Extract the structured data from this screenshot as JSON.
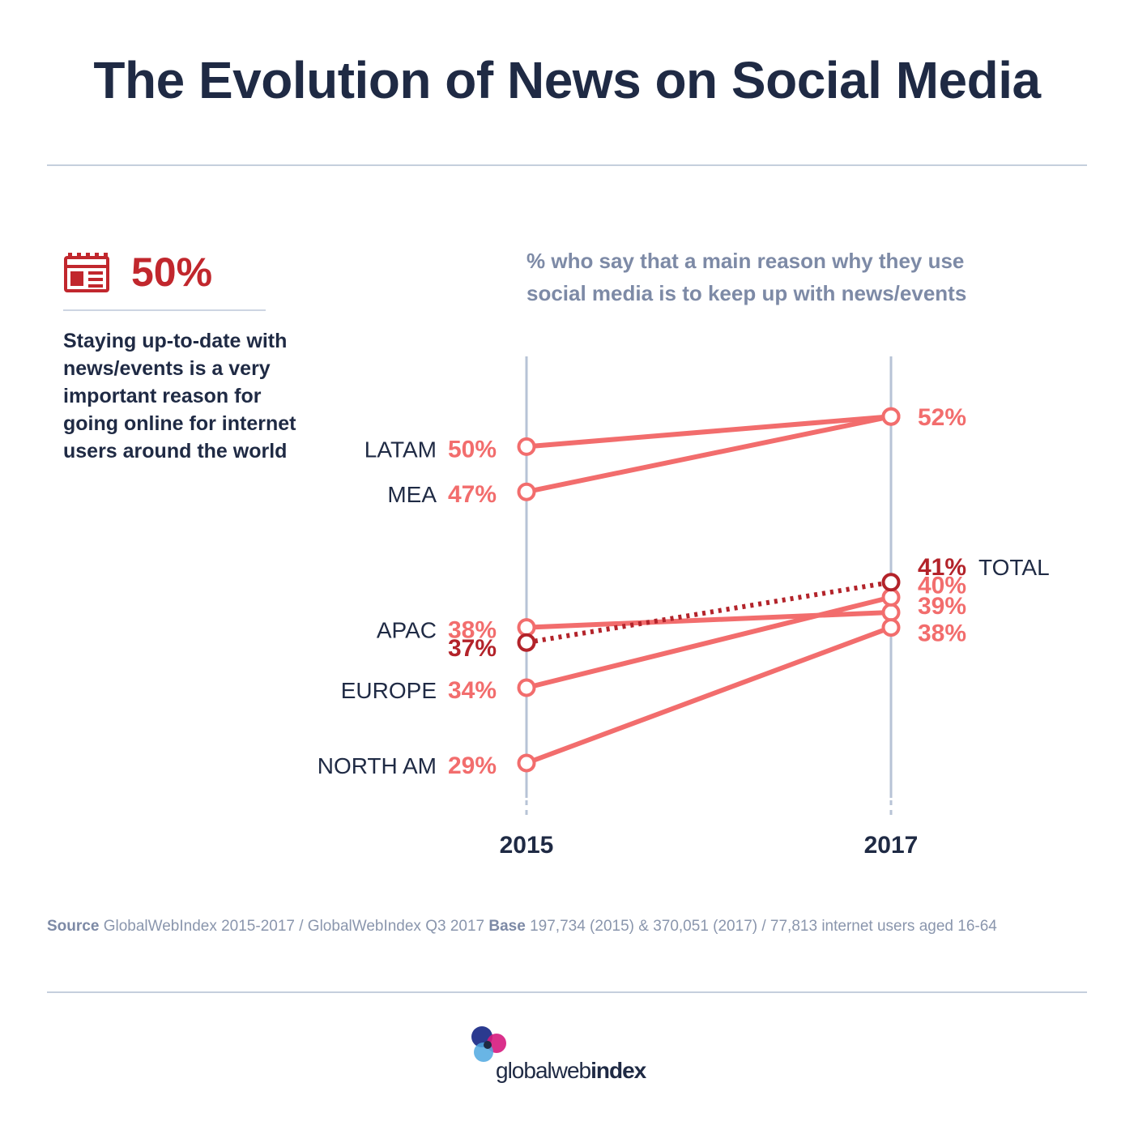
{
  "header": {
    "title": "The Evolution of News on Social Media"
  },
  "stat": {
    "icon": "newspaper-icon",
    "value": "50%",
    "text": "Staying up-to-date with news/events is a very important reason for going online for internet users around the world"
  },
  "subtitle": "% who say that a main reason why they use social media is to keep up with news/events",
  "chart_data": {
    "type": "line",
    "subtype": "slope",
    "x": [
      "2015",
      "2017"
    ],
    "ylim": [
      25,
      55
    ],
    "series": [
      {
        "name": "LATAM",
        "values": [
          50,
          52
        ],
        "labels": [
          "50%",
          "52%"
        ],
        "style": "solid"
      },
      {
        "name": "MEA",
        "values": [
          47,
          52
        ],
        "labels": [
          "47%",
          "52%"
        ],
        "style": "solid"
      },
      {
        "name": "APAC",
        "values": [
          38,
          39
        ],
        "labels": [
          "38%",
          "39%"
        ],
        "style": "solid"
      },
      {
        "name": "EUROPE",
        "values": [
          34,
          40
        ],
        "labels": [
          "34%",
          "40%"
        ],
        "style": "solid"
      },
      {
        "name": "NORTH AM",
        "values": [
          29,
          38
        ],
        "labels": [
          "29%",
          "38%"
        ],
        "style": "solid"
      },
      {
        "name": "TOTAL",
        "values": [
          37,
          41
        ],
        "labels": [
          "37%",
          "41%"
        ],
        "style": "dotted"
      }
    ],
    "colors": {
      "regions": "#f26d6d",
      "total": "#b3232a",
      "axis": "#b7c3d6",
      "category_text": "#1f2a44"
    }
  },
  "source": {
    "source_label": "Source",
    "source_text": "GlobalWebIndex 2015-2017 / GlobalWebIndex Q3 2017",
    "base_label": "Base",
    "base_text": "197,734 (2015) & 370,051 (2017) / 77,813 internet users aged 16-64"
  },
  "logo": {
    "part1": "global",
    "part2": "web",
    "part3": "index"
  }
}
